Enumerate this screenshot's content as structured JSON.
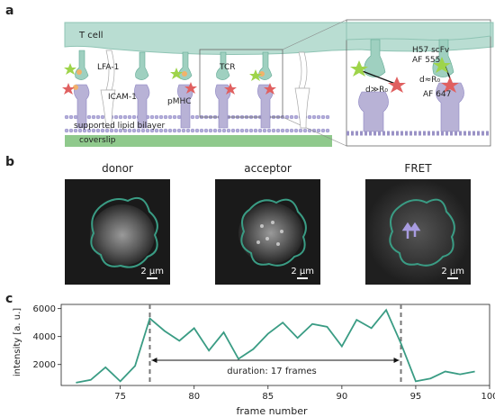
{
  "panel_a": {
    "label": "a",
    "t_cell": "T cell",
    "lfa1": "LFA-1",
    "icam1": "ICAM-1",
    "pmhc": "pMHC",
    "tcr": "TCR",
    "bilayer": "supported lipid bilayer",
    "coverslip": "coverslip",
    "zoom": {
      "h57_line1": "H57 scFv",
      "h57_line2": "AF 555",
      "d_far": "d≫R₀",
      "d_near": "d≈R₀",
      "af647": "AF 647"
    }
  },
  "panel_b": {
    "label": "b",
    "images": [
      {
        "title": "donor",
        "scale": "2 μm"
      },
      {
        "title": "acceptor",
        "scale": "2 μm"
      },
      {
        "title": "FRET",
        "scale": "2 μm"
      }
    ]
  },
  "panel_c": {
    "label": "c",
    "annotation": "duration: 17 frames"
  },
  "colors": {
    "tcell": "#b9ddd2",
    "receptor": "#9fd0c0",
    "ligand": "#b8b2d6",
    "line": "#3a9c84",
    "coverslip": "#8fc98c",
    "bilayer": "#9a92c6"
  },
  "chart_data": {
    "type": "line",
    "xlabel": "frame number",
    "ylabel": "intensity [a. u.]",
    "xlim": [
      71,
      100
    ],
    "ylim": [
      500,
      6300
    ],
    "xticks": [
      75,
      80,
      85,
      90,
      95,
      100
    ],
    "yticks": [
      2000,
      4000,
      6000
    ],
    "x": [
      72,
      73,
      74,
      75,
      76,
      77,
      78,
      79,
      80,
      81,
      82,
      83,
      84,
      85,
      86,
      87,
      88,
      89,
      90,
      91,
      92,
      93,
      94,
      95,
      96,
      97,
      98,
      99
    ],
    "y": [
      700,
      900,
      1800,
      800,
      1900,
      5300,
      4400,
      3700,
      4600,
      3000,
      4300,
      2400,
      3100,
      4200,
      5000,
      3900,
      4900,
      4700,
      3300,
      5200,
      4600,
      5900,
      3500,
      800,
      1000,
      1500,
      1300,
      1500
    ],
    "vlines": [
      77,
      94
    ],
    "grid": false
  }
}
